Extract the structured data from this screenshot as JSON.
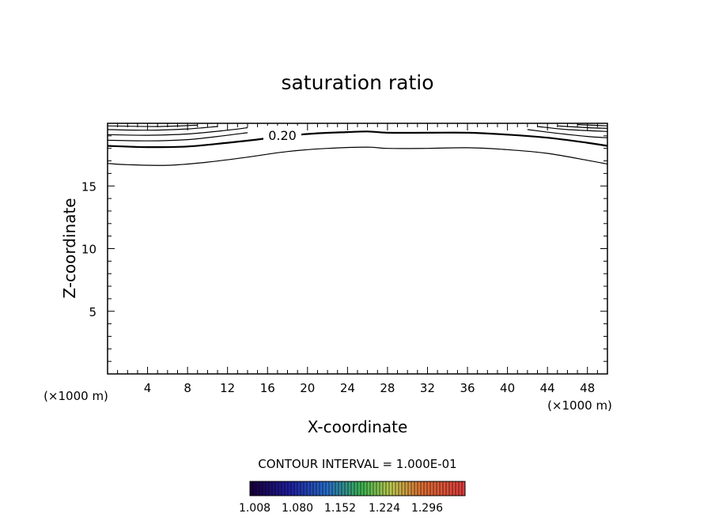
{
  "chart_data": {
    "type": "contour",
    "title": "saturation ratio",
    "xlabel": "X-coordinate",
    "ylabel": "Z-coordinate",
    "x_unit_left": "(×1000 m)",
    "x_unit_right": "(×1000 m)",
    "xlim": [
      0,
      50
    ],
    "ylim": [
      0,
      20
    ],
    "x_ticks": [
      4,
      8,
      12,
      16,
      20,
      24,
      28,
      32,
      36,
      40,
      44,
      48
    ],
    "x_tick_labels": [
      "4",
      "8",
      "12",
      "16",
      "20",
      "24",
      "28",
      "32",
      "36",
      "40",
      "44",
      "48"
    ],
    "y_ticks": [
      5,
      10,
      15
    ],
    "y_tick_labels": [
      "5",
      "10",
      "15"
    ],
    "contour_label": "0.20",
    "contour_interval_text": "CONTOUR INTERVAL = 1.000E-01",
    "colorbar_labels": [
      "1.008",
      "1.080",
      "1.152",
      "1.224",
      "1.296"
    ],
    "contours": [
      {
        "name": "contour-1",
        "heavy": false,
        "points": [
          [
            0,
            16.8
          ],
          [
            2,
            16.7
          ],
          [
            6,
            16.65
          ],
          [
            10,
            16.9
          ],
          [
            14,
            17.3
          ],
          [
            18,
            17.75
          ],
          [
            22,
            18.0
          ],
          [
            26,
            18.1
          ],
          [
            28,
            18.0
          ],
          [
            32,
            18.0
          ],
          [
            36,
            18.05
          ],
          [
            40,
            17.9
          ],
          [
            44,
            17.6
          ],
          [
            48,
            17.05
          ],
          [
            50,
            16.75
          ]
        ]
      },
      {
        "name": "contour-2",
        "heavy": true,
        "points": [
          [
            0,
            18.2
          ],
          [
            4,
            18.1
          ],
          [
            8,
            18.15
          ],
          [
            12,
            18.45
          ],
          [
            16,
            18.8
          ],
          [
            20,
            19.15
          ],
          [
            24,
            19.3
          ],
          [
            26,
            19.35
          ],
          [
            28,
            19.25
          ],
          [
            32,
            19.25
          ],
          [
            36,
            19.25
          ],
          [
            40,
            19.1
          ],
          [
            44,
            18.85
          ],
          [
            48,
            18.45
          ],
          [
            50,
            18.2
          ]
        ]
      },
      {
        "name": "contour-3",
        "heavy": false,
        "points": [
          [
            0,
            18.65
          ],
          [
            4,
            18.6
          ],
          [
            8,
            18.7
          ],
          [
            11,
            18.95
          ],
          [
            14,
            19.25
          ]
        ]
      },
      {
        "name": "contour-3b",
        "heavy": false,
        "points": [
          [
            42,
            19.5
          ],
          [
            45,
            19.2
          ],
          [
            48,
            18.95
          ],
          [
            50,
            18.85
          ]
        ]
      },
      {
        "name": "contour-4",
        "heavy": false,
        "points": [
          [
            0,
            19.1
          ],
          [
            4,
            19.05
          ],
          [
            8,
            19.15
          ],
          [
            12,
            19.45
          ],
          [
            14,
            19.65
          ]
        ]
      },
      {
        "name": "contour-4b",
        "heavy": false,
        "points": [
          [
            43,
            19.75
          ],
          [
            46,
            19.5
          ],
          [
            50,
            19.35
          ]
        ]
      },
      {
        "name": "contour-5",
        "heavy": false,
        "points": [
          [
            0,
            19.5
          ],
          [
            4,
            19.45
          ],
          [
            8,
            19.55
          ],
          [
            11,
            19.75
          ]
        ]
      },
      {
        "name": "contour-5b",
        "heavy": false,
        "points": [
          [
            45,
            19.8
          ],
          [
            48,
            19.65
          ],
          [
            50,
            19.6
          ]
        ]
      },
      {
        "name": "contour-6",
        "heavy": false,
        "points": [
          [
            0,
            19.8
          ],
          [
            5,
            19.75
          ],
          [
            9,
            19.85
          ]
        ]
      },
      {
        "name": "contour-6b",
        "heavy": false,
        "points": [
          [
            47,
            19.9
          ],
          [
            50,
            19.8
          ]
        ]
      }
    ]
  }
}
